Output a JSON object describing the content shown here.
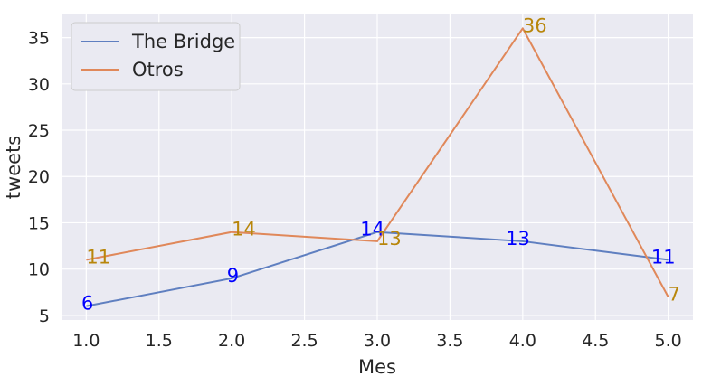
{
  "chart_data": {
    "type": "line",
    "title": "",
    "xlabel": "Mes",
    "ylabel": "tweets",
    "xlim": [
      0.83,
      5.17
    ],
    "ylim": [
      4.5,
      37.5
    ],
    "xticks": [
      1.0,
      1.5,
      2.0,
      2.5,
      3.0,
      3.5,
      4.0,
      4.5,
      5.0
    ],
    "xtick_labels": [
      "1.0",
      "1.5",
      "2.0",
      "2.5",
      "3.0",
      "3.5",
      "4.0",
      "4.5",
      "5.0"
    ],
    "yticks": [
      5,
      10,
      15,
      20,
      25,
      30,
      35
    ],
    "ytick_labels": [
      "5",
      "10",
      "15",
      "20",
      "25",
      "30",
      "35"
    ],
    "grid": true,
    "legend_position": "top-left",
    "x": [
      1,
      2,
      3,
      4,
      5
    ],
    "series": [
      {
        "name": "The Bridge",
        "values": [
          6,
          9,
          14,
          13,
          11
        ],
        "labels": [
          "6",
          "9",
          "14",
          "13",
          "11"
        ],
        "line_color": "#5f7fc0",
        "label_color": "#0000ff",
        "label_placement": "left"
      },
      {
        "name": "Otros",
        "values": [
          11,
          14,
          13,
          36,
          7
        ],
        "labels": [
          "11",
          "14",
          "13",
          "36",
          "7"
        ],
        "line_color": "#e0885a",
        "label_color": "#b8860b",
        "label_placement": "right"
      }
    ],
    "colors": {
      "background": "#eaeaf2",
      "grid": "#ffffff",
      "text": "#262626"
    }
  }
}
